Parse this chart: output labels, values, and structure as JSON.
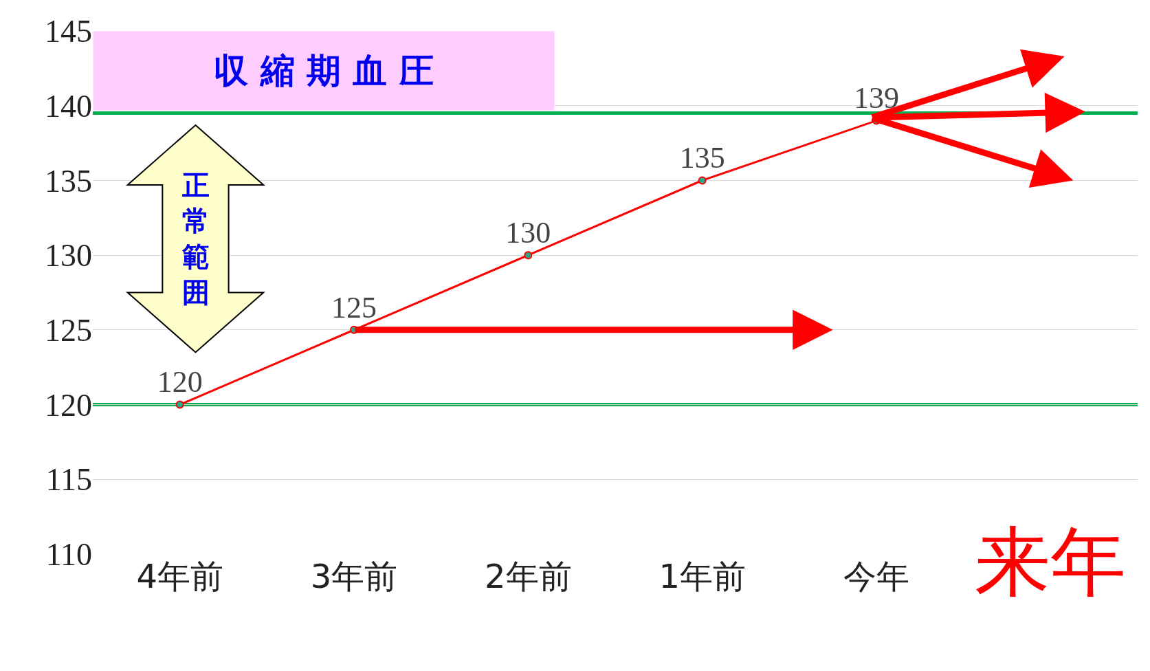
{
  "chart_data": {
    "type": "line",
    "title": "収 縮 期 血 圧",
    "categories": [
      "4年前",
      "3年前",
      "2年前",
      "1年前",
      "今年",
      "来年"
    ],
    "series": [
      {
        "color": "#ff0000",
        "values": [
          120,
          125,
          130,
          135,
          139,
          null
        ]
      }
    ],
    "ylim": [
      110,
      145
    ],
    "yticks": [
      110,
      115,
      120,
      125,
      130,
      135,
      140,
      145
    ],
    "grid": "y",
    "marker": "circle",
    "line_style": "solid",
    "data_labels": true,
    "legend": false,
    "ref_lines": [
      {
        "axis": "y",
        "value": 139.5,
        "label": null,
        "color": "#00b050"
      },
      {
        "axis": "y",
        "value": 120,
        "label": null,
        "color": "#00b050"
      }
    ],
    "annotations": [
      "正常範囲"
    ]
  }
}
